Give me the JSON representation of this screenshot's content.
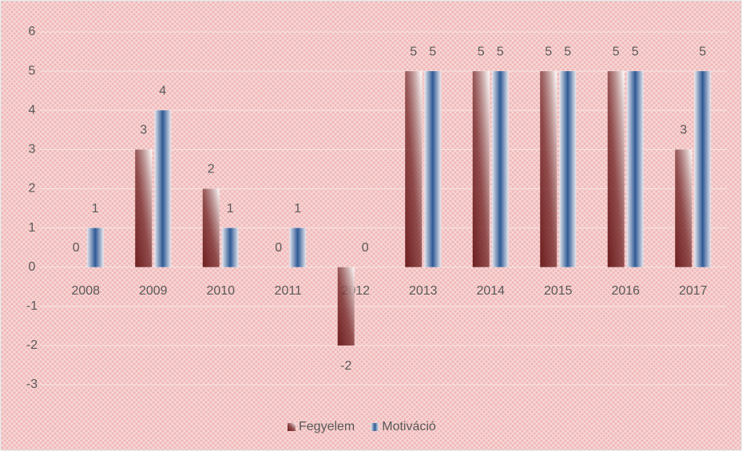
{
  "chart_data": {
    "type": "bar",
    "categories": [
      "2008",
      "2009",
      "2010",
      "2011",
      "2012",
      "2013",
      "2014",
      "2015",
      "2016",
      "2017"
    ],
    "series": [
      {
        "name": "Fegyelem",
        "color": "#6e1f1f",
        "values": [
          0,
          3,
          2,
          0,
          -2,
          5,
          5,
          5,
          5,
          3
        ]
      },
      {
        "name": "Motiváció",
        "color": "#2f5a96",
        "values": [
          1,
          4,
          1,
          1,
          0,
          5,
          5,
          5,
          5,
          5
        ]
      }
    ],
    "ylim": [
      -3,
      6
    ],
    "yticks": [
      -3,
      -2,
      -1,
      0,
      1,
      2,
      3,
      4,
      5,
      6
    ],
    "grid": true,
    "legend": "bottom"
  }
}
